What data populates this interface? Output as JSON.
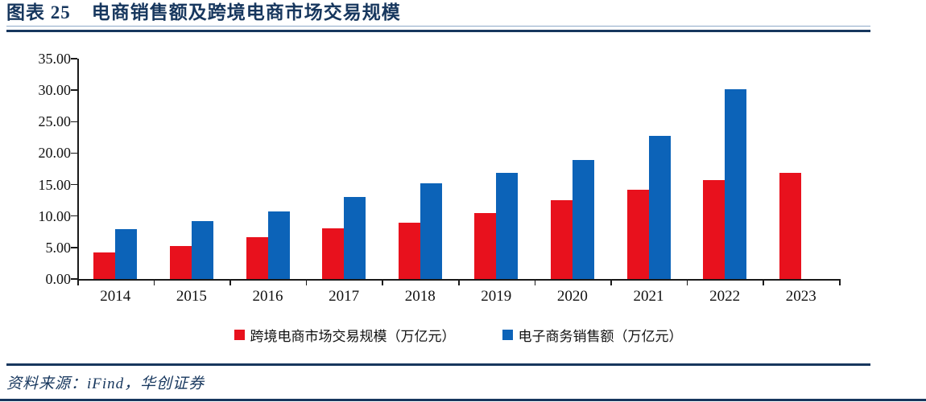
{
  "header": {
    "figure_label": "图表 25",
    "title": "电商销售额及跨境电商市场交易规模"
  },
  "footer": {
    "source_label": "资料来源：iFind，华创证券"
  },
  "colors": {
    "navy": "#17375E",
    "red": "#E8111D",
    "blue": "#0C63B8",
    "axis": "#1A1A1A"
  },
  "chart_data": {
    "type": "bar",
    "title": "电商销售额及跨境电商市场交易规模",
    "categories": [
      "2014",
      "2015",
      "2016",
      "2017",
      "2018",
      "2019",
      "2020",
      "2021",
      "2022",
      "2023"
    ],
    "series": [
      {
        "name": "跨境电商市场交易规模（万亿元）",
        "color": "#E8111D",
        "values": [
          4.2,
          5.3,
          6.7,
          8.0,
          9.0,
          10.5,
          12.5,
          14.2,
          15.7,
          16.8
        ]
      },
      {
        "name": "电子商务销售额（万亿元）",
        "color": "#0C63B8",
        "values": [
          7.9,
          9.2,
          10.7,
          13.0,
          15.2,
          16.9,
          18.9,
          22.7,
          30.2,
          null
        ]
      }
    ],
    "ylim": [
      0,
      35
    ],
    "ytick_step": 5,
    "ytick_labels": [
      "0.00",
      "5.00",
      "10.00",
      "15.00",
      "20.00",
      "25.00",
      "30.00",
      "35.00"
    ],
    "grid": false,
    "legend_position": "bottom"
  }
}
